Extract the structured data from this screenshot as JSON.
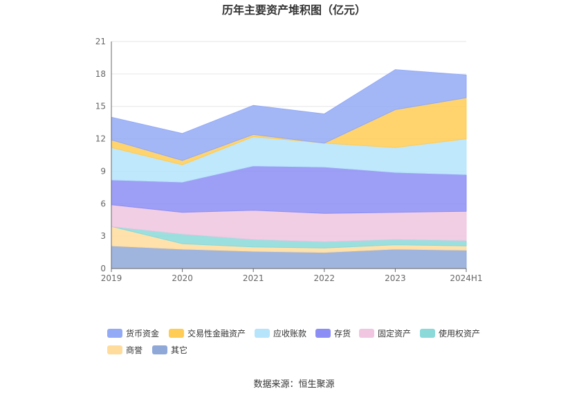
{
  "chart_data": {
    "type": "area",
    "stacked": true,
    "title": "历年主要资产堆积图（亿元）",
    "categories": [
      "2019",
      "2020",
      "2021",
      "2022",
      "2023",
      "2024H1"
    ],
    "ylim": [
      0,
      21
    ],
    "yticks": [
      0,
      3,
      6,
      9,
      12,
      15,
      18,
      21
    ],
    "grid": true,
    "legend_position": "bottom",
    "series": [
      {
        "name": "其它",
        "color": "#8fa8d8",
        "values": [
          2.1,
          1.8,
          1.6,
          1.5,
          1.8,
          1.7
        ]
      },
      {
        "name": "商誉",
        "color": "#ffdc9c",
        "values": [
          1.8,
          0.5,
          0.4,
          0.4,
          0.4,
          0.4
        ]
      },
      {
        "name": "使用权资产",
        "color": "#8bd9d9",
        "values": [
          0.0,
          0.9,
          0.7,
          0.6,
          0.5,
          0.5
        ]
      },
      {
        "name": "固定资产",
        "color": "#f0c6e0",
        "values": [
          2.0,
          2.0,
          2.7,
          2.6,
          2.5,
          2.7
        ]
      },
      {
        "name": "存货",
        "color": "#8c8ef5",
        "values": [
          2.3,
          2.8,
          4.1,
          4.3,
          3.7,
          3.4
        ]
      },
      {
        "name": "应收账款",
        "color": "#b5e4fb",
        "values": [
          3.0,
          1.6,
          2.7,
          2.2,
          2.3,
          3.3
        ]
      },
      {
        "name": "交易性金融资产",
        "color": "#ffcc55",
        "values": [
          0.7,
          0.4,
          0.2,
          0.0,
          3.5,
          3.8
        ]
      },
      {
        "name": "货币资金",
        "color": "#93aaf6",
        "values": [
          2.1,
          2.5,
          2.7,
          2.7,
          3.7,
          2.1
        ]
      }
    ],
    "legend_order": [
      "货币资金",
      "交易性金融资产",
      "应收账款",
      "存货",
      "固定资产",
      "使用权资产",
      "商誉",
      "其它"
    ]
  },
  "source_label": "数据来源：恒生聚源",
  "colors": {
    "axis": "#666666",
    "grid": "#e6e6e6"
  }
}
